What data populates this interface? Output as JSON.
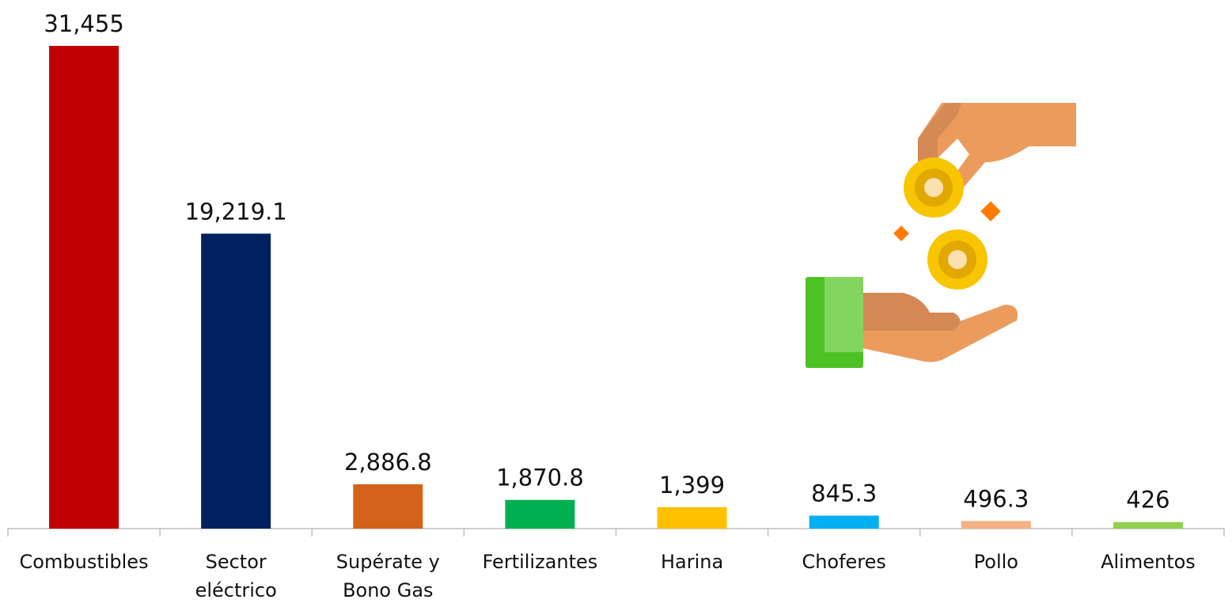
{
  "chart_data": {
    "type": "bar",
    "categories": [
      "Combustibles",
      "Sector\neléctrico",
      "Supérate y\nBono Gas",
      "Fertilizantes",
      "Harina",
      "Choferes",
      "Pollo",
      "Alimentos"
    ],
    "values": [
      31455,
      19219.1,
      2886.8,
      1870.8,
      1399,
      845.3,
      496.3,
      426
    ],
    "value_labels": [
      "31,455",
      "19,219.1",
      "2,886.8",
      "1,870.8",
      "1,399",
      "845.3",
      "496.3",
      "426"
    ],
    "colors": [
      "#c00000",
      "#002060",
      "#d4621a",
      "#00b050",
      "#ffc000",
      "#00b0f0",
      "#f4b183",
      "#92d050"
    ],
    "ylim": [
      0,
      32000
    ]
  }
}
